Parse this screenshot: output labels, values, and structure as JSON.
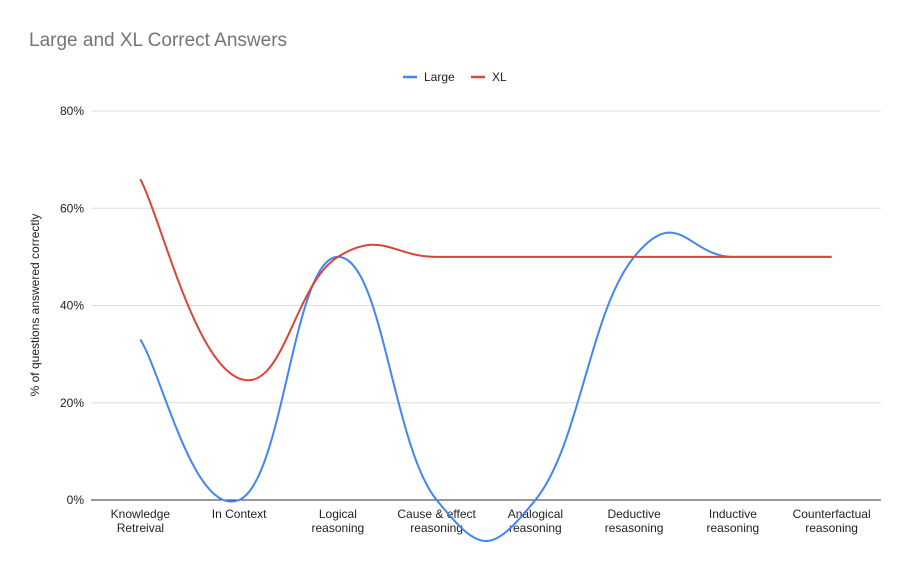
{
  "chart_data": {
    "type": "line",
    "title": "Large and XL Correct Answers",
    "ylabel": "% of questions answered correctly",
    "xlabel": "",
    "categories": [
      [
        "Knowledge",
        "Retreival"
      ],
      [
        "In Context"
      ],
      [
        "Logical",
        "reasoning"
      ],
      [
        "Cause & effect",
        "reasoning"
      ],
      [
        "Analogical",
        "reasoning"
      ],
      [
        "Deductive",
        "resasoning"
      ],
      [
        "Inductive",
        "reasoning"
      ],
      [
        "Counterfactual",
        "reasoning"
      ]
    ],
    "yticks": [
      "0%",
      "20%",
      "40%",
      "60%",
      "80%"
    ],
    "ylim": [
      0,
      80
    ],
    "grid": true,
    "legend_position": "top-center",
    "series": [
      {
        "name": "Large",
        "color": "#4285f4",
        "values": [
          33,
          0,
          50,
          0,
          0,
          50,
          50,
          50
        ]
      },
      {
        "name": "XL",
        "color": "#db4437",
        "values": [
          66,
          25,
          50,
          50,
          50,
          50,
          50,
          50
        ]
      }
    ]
  }
}
